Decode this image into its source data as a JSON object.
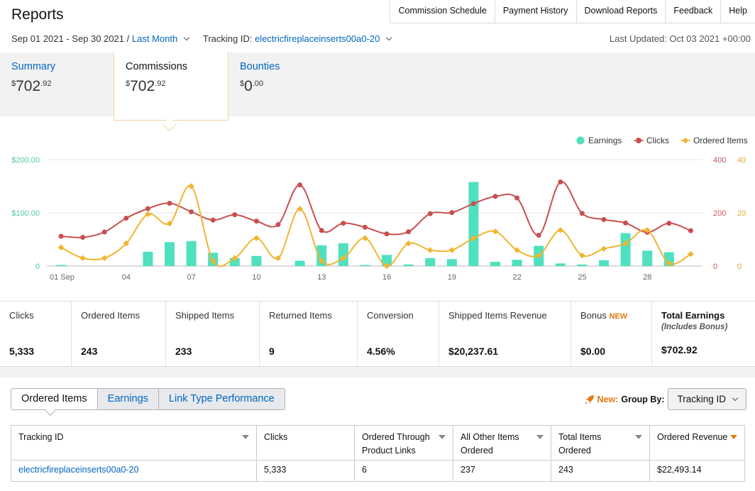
{
  "page": {
    "title": "Reports"
  },
  "topnav": [
    "Commission Schedule",
    "Payment History",
    "Download Reports",
    "Feedback",
    "Help"
  ],
  "date_range": {
    "range": "Sep 01 2021 - Sep 30 2021",
    "separator": "/",
    "preset": "Last Month"
  },
  "tracking": {
    "label": "Tracking ID:",
    "value": "electricfireplaceinserts00a0-20"
  },
  "last_updated": "Last Updated: Oct 03 2021 +00:00",
  "tabs": [
    {
      "label": "Summary",
      "amount": "702",
      "cents": ".92",
      "currency": "$",
      "active": false
    },
    {
      "label": "Commissions",
      "amount": "702",
      "cents": ".92",
      "currency": "$",
      "active": true
    },
    {
      "label": "Bounties",
      "amount": "0",
      "cents": ".00",
      "currency": "$",
      "active": false
    }
  ],
  "colors": {
    "earnings": "#4fe0bf",
    "clicks": "#c94f4f",
    "ordered": "#f0b530",
    "link": "#0066c0",
    "accent": "#e47911"
  },
  "chart_data": {
    "type": "bar",
    "legend": [
      {
        "name": "Earnings",
        "icon": "dot"
      },
      {
        "name": "Clicks",
        "icon": "dot-line"
      },
      {
        "name": "Ordered Items",
        "icon": "diamond-line"
      }
    ],
    "legend_position": "top-right",
    "x_ticks": [
      "01 Sep",
      "04",
      "07",
      "10",
      "13",
      "16",
      "19",
      "22",
      "25",
      "28"
    ],
    "left_axis": {
      "ticks": [
        "0",
        "$100.00",
        "$200.00"
      ],
      "range": [
        0,
        200
      ]
    },
    "right_axis_clicks": {
      "ticks": [
        "0",
        "200",
        "400"
      ],
      "range": [
        0,
        400
      ]
    },
    "right_axis_items": {
      "ticks": [
        "0",
        "20",
        "40"
      ],
      "range": [
        0,
        40
      ]
    },
    "days": [
      1,
      2,
      3,
      4,
      5,
      6,
      7,
      8,
      9,
      10,
      11,
      12,
      13,
      14,
      15,
      16,
      17,
      18,
      19,
      20,
      21,
      22,
      23,
      24,
      25,
      26,
      27,
      28,
      29,
      30
    ],
    "series": [
      {
        "name": "Earnings",
        "type": "bar",
        "axis": "left",
        "values": [
          2,
          0,
          0,
          0,
          27,
          45,
          47,
          25,
          15,
          19,
          0,
          10,
          39,
          43,
          2,
          21,
          3,
          15,
          13,
          158,
          8,
          12,
          38,
          5,
          3,
          11,
          62,
          29,
          26,
          0
        ]
      },
      {
        "name": "Clicks",
        "type": "line",
        "axis": "right_clicks",
        "values": [
          112,
          108,
          128,
          180,
          216,
          236,
          204,
          173,
          193,
          169,
          156,
          305,
          134,
          161,
          146,
          121,
          129,
          197,
          201,
          235,
          262,
          256,
          116,
          316,
          198,
          175,
          162,
          127,
          161,
          133
        ]
      },
      {
        "name": "Ordered Items",
        "type": "line",
        "axis": "right_items",
        "values": [
          7,
          3,
          3,
          8.5,
          19.5,
          16,
          30,
          2,
          3,
          10.5,
          3,
          21.5,
          2,
          3,
          10.5,
          0,
          8.5,
          6,
          6,
          10.5,
          13,
          6,
          4,
          13.5,
          4,
          6.5,
          8.5,
          13.5,
          1,
          4.5
        ]
      }
    ]
  },
  "metrics": [
    {
      "label": "Clicks",
      "value": "5,333"
    },
    {
      "label": "Ordered Items",
      "value": "243"
    },
    {
      "label": "Shipped Items",
      "value": "233"
    },
    {
      "label": "Returned Items",
      "value": "9"
    },
    {
      "label": "Conversion",
      "value": "4.56%"
    },
    {
      "label": "Shipped Items Revenue",
      "value": "$20,237.61"
    },
    {
      "label": "Bonus",
      "badge": "NEW",
      "value": "$0.00"
    },
    {
      "label": "Total Earnings",
      "sub": "(Includes Bonus)",
      "value": "$702.92"
    }
  ],
  "report_tabs": [
    "Ordered Items",
    "Earnings",
    "Link Type Performance"
  ],
  "group_by": {
    "new_label": "New:",
    "label": "Group By:",
    "value": "Tracking ID"
  },
  "table": {
    "headers": [
      "Tracking ID",
      "Clicks",
      "Ordered Through Product Links",
      "All Other Items Ordered",
      "Total Items Ordered",
      "Ordered Revenue"
    ],
    "rows": [
      [
        "electricfireplaceinserts00a0-20",
        "5,333",
        "6",
        "237",
        "243",
        "$22,493.14"
      ]
    ]
  }
}
